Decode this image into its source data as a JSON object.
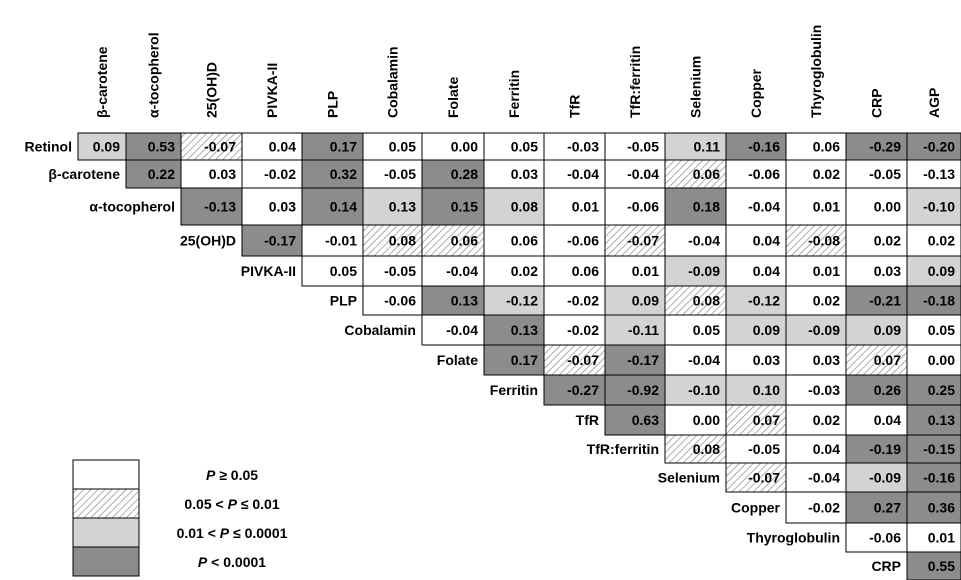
{
  "chart_data": {
    "type": "heatmap",
    "column_labels": [
      "β-carotene",
      "α-tocopherol",
      "25(OH)D",
      "PIVKA-II",
      "PLP",
      "Cobalamin",
      "Folate",
      "Ferritin",
      "TfR",
      "TfR:ferritin",
      "Selenium",
      "Copper",
      "Thyroglobulin",
      "CRP",
      "AGP"
    ],
    "row_labels": [
      "Retinol",
      "β-carotene",
      "α-tocopherol",
      "25(OH)D",
      "PIVKA-II",
      "PLP",
      "Cobalamin",
      "Folate",
      "Ferritin",
      "TfR",
      "TfR:ferritin",
      "Selenium",
      "Copper",
      "Thyroglobulin",
      "CRP"
    ],
    "values": [
      [
        "0.09",
        "0.53",
        "-0.07",
        "0.04",
        "0.17",
        "0.05",
        "0.00",
        "0.05",
        "-0.03",
        "-0.05",
        "0.11",
        "-0.16",
        "0.06",
        "-0.29",
        "-0.20"
      ],
      [
        "0.22",
        "0.03",
        "-0.02",
        "0.32",
        "-0.05",
        "0.28",
        "0.03",
        "-0.04",
        "-0.04",
        "0.06",
        "-0.06",
        "0.02",
        "-0.05",
        "-0.13"
      ],
      [
        "-0.13",
        "0.03",
        "0.14",
        "0.13",
        "0.15",
        "0.08",
        "0.01",
        "-0.06",
        "0.18",
        "-0.04",
        "0.01",
        "0.00",
        "-0.10"
      ],
      [
        "-0.17",
        "-0.01",
        "0.08",
        "0.06",
        "0.06",
        "-0.06",
        "-0.07",
        "-0.04",
        "0.04",
        "-0.08",
        "0.02",
        "0.02"
      ],
      [
        "0.05",
        "-0.05",
        "-0.04",
        "0.02",
        "0.06",
        "0.01",
        "-0.09",
        "0.04",
        "0.01",
        "0.03",
        "0.09"
      ],
      [
        "-0.06",
        "0.13",
        "-0.12",
        "-0.02",
        "0.09",
        "0.08",
        "-0.12",
        "0.02",
        "-0.21",
        "-0.18"
      ],
      [
        "-0.04",
        "0.13",
        "-0.02",
        "-0.11",
        "0.05",
        "0.09",
        "-0.09",
        "0.09",
        "0.05"
      ],
      [
        "0.17",
        "-0.07",
        "-0.17",
        "-0.04",
        "0.03",
        "0.03",
        "0.07",
        "0.00"
      ],
      [
        "-0.27",
        "-0.92",
        "-0.10",
        "0.10",
        "-0.03",
        "0.26",
        "0.25"
      ],
      [
        "0.63",
        "0.00",
        "0.07",
        "0.02",
        "0.04",
        "0.13"
      ],
      [
        "0.08",
        "-0.05",
        "0.04",
        "-0.19",
        "-0.15"
      ],
      [
        "-0.07",
        "-0.04",
        "-0.09",
        "-0.16"
      ],
      [
        "-0.02",
        "0.27",
        "0.36"
      ],
      [
        "-0.06",
        "0.01"
      ],
      [
        "0.55"
      ]
    ],
    "significance": [
      [
        "L",
        "D",
        "H",
        "N",
        "D",
        "N",
        "N",
        "N",
        "N",
        "N",
        "L",
        "D",
        "N",
        "D",
        "D"
      ],
      [
        "D",
        "N",
        "N",
        "D",
        "N",
        "D",
        "N",
        "N",
        "N",
        "H",
        "N",
        "N",
        "N",
        "N"
      ],
      [
        "D",
        "N",
        "D",
        "L",
        "D",
        "L",
        "N",
        "N",
        "D",
        "N",
        "N",
        "N",
        "L"
      ],
      [
        "D",
        "N",
        "H",
        "H",
        "N",
        "N",
        "H",
        "N",
        "N",
        "H",
        "N",
        "N"
      ],
      [
        "N",
        "N",
        "N",
        "N",
        "N",
        "N",
        "L",
        "N",
        "N",
        "N",
        "L"
      ],
      [
        "N",
        "D",
        "L",
        "N",
        "L",
        "H",
        "L",
        "N",
        "D",
        "D"
      ],
      [
        "N",
        "D",
        "N",
        "L",
        "N",
        "L",
        "L",
        "L",
        "N"
      ],
      [
        "D",
        "H",
        "D",
        "N",
        "N",
        "N",
        "H",
        "N"
      ],
      [
        "D",
        "D",
        "L",
        "L",
        "N",
        "D",
        "D"
      ],
      [
        "D",
        "N",
        "H",
        "N",
        "N",
        "D"
      ],
      [
        "H",
        "N",
        "N",
        "D",
        "D"
      ],
      [
        "H",
        "N",
        "L",
        "D"
      ],
      [
        "N",
        "D",
        "D"
      ],
      [
        "N",
        "N"
      ],
      [
        "D"
      ]
    ],
    "legend": [
      {
        "key": "N",
        "label_pre": "",
        "label_italic": "P",
        "label_rel": "≥",
        "label_post": "0.05"
      },
      {
        "key": "H",
        "label_pre": "0.05 < ",
        "label_italic": "P",
        "label_rel": "≤",
        "label_post": "0.01"
      },
      {
        "key": "L",
        "label_pre": "0.01 < ",
        "label_italic": "P",
        "label_rel": "≤",
        "label_post": "0.0001"
      },
      {
        "key": "D",
        "label_pre": "",
        "label_italic": "P",
        "label_rel": "<",
        "label_post": "0.0001"
      }
    ],
    "legend_placement": "bottom-left",
    "colors": {
      "N": "#ffffff",
      "H": "#ffffff",
      "L": "#d3d3d3",
      "D": "#8c8c8c",
      "border": "#000000",
      "hatch": "#8a8a8a"
    }
  }
}
